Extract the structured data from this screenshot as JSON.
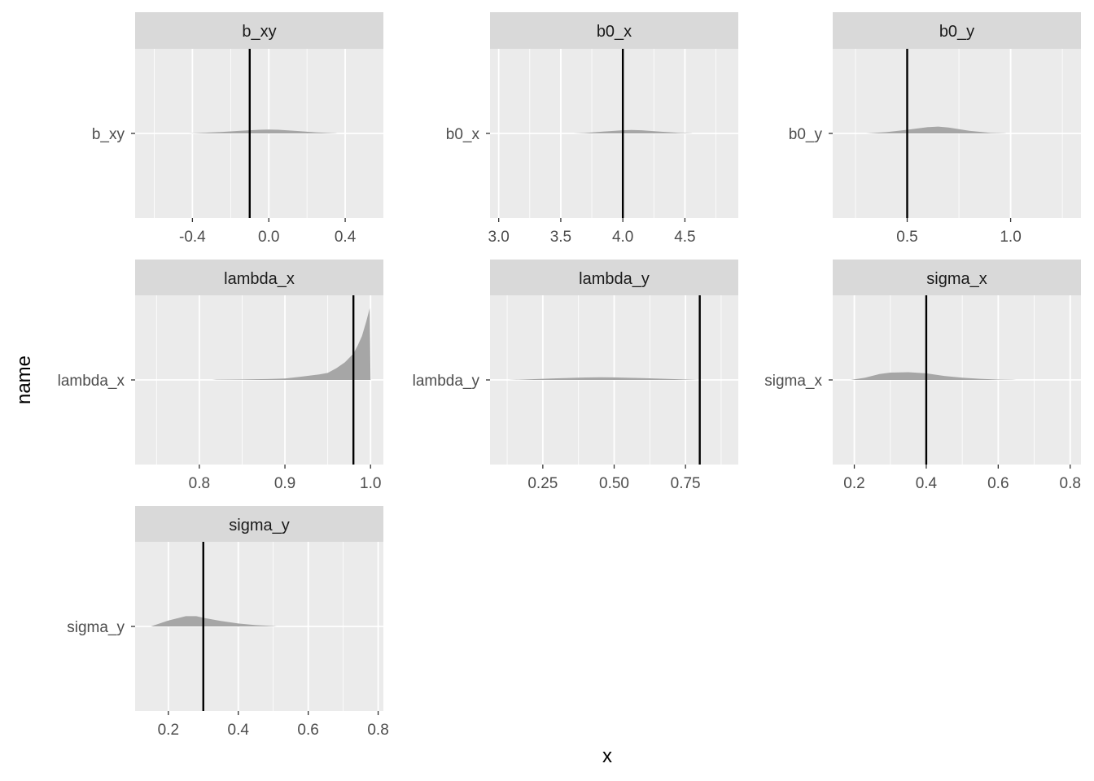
{
  "chart_data": {
    "type": "area",
    "xlabel": "x",
    "ylabel": "name",
    "panels": [
      {
        "name": "b_xy",
        "y_label": "b_xy",
        "xlim": [
          -0.7,
          0.6
        ],
        "ticks": [
          -0.4,
          0.0,
          0.4
        ],
        "tick_labels": [
          "-0.4",
          "0.0",
          "0.4"
        ],
        "ref_line": -0.1,
        "density": [
          [
            -0.42,
            0
          ],
          [
            -0.35,
            0.008
          ],
          [
            -0.25,
            0.02
          ],
          [
            -0.15,
            0.037
          ],
          [
            -0.05,
            0.05
          ],
          [
            0.0,
            0.053
          ],
          [
            0.05,
            0.05
          ],
          [
            0.15,
            0.033
          ],
          [
            0.25,
            0.015
          ],
          [
            0.35,
            0.003
          ],
          [
            0.36,
            0
          ]
        ]
      },
      {
        "name": "b0_x",
        "y_label": "b0_x",
        "xlim": [
          2.93,
          4.93
        ],
        "ticks": [
          3.0,
          3.5,
          4.0,
          4.5
        ],
        "tick_labels": [
          "3.0",
          "3.5",
          "4.0",
          "4.5"
        ],
        "ref_line": 4.0,
        "density": [
          [
            3.6,
            0
          ],
          [
            3.7,
            0.007
          ],
          [
            3.85,
            0.027
          ],
          [
            4.0,
            0.043
          ],
          [
            4.07,
            0.048
          ],
          [
            4.15,
            0.043
          ],
          [
            4.3,
            0.024
          ],
          [
            4.45,
            0.008
          ],
          [
            4.55,
            0.002
          ],
          [
            4.56,
            0
          ]
        ]
      },
      {
        "name": "b0_y",
        "y_label": "b0_y",
        "xlim": [
          0.14,
          1.34
        ],
        "ticks": [
          0.5,
          1.0
        ],
        "tick_labels": [
          "0.5",
          "1.0"
        ],
        "ref_line": 0.5,
        "density": [
          [
            0.3,
            0
          ],
          [
            0.4,
            0.018
          ],
          [
            0.5,
            0.05
          ],
          [
            0.6,
            0.085
          ],
          [
            0.65,
            0.093
          ],
          [
            0.7,
            0.08
          ],
          [
            0.8,
            0.035
          ],
          [
            0.9,
            0.008
          ],
          [
            0.97,
            0.002
          ],
          [
            0.98,
            0
          ]
        ]
      },
      {
        "name": "lambda_x",
        "y_label": "lambda_x",
        "xlim": [
          0.725,
          1.015
        ],
        "ticks": [
          0.8,
          0.9,
          1.0
        ],
        "tick_labels": [
          "0.8",
          "0.9",
          "1.0"
        ],
        "ref_line": 0.98,
        "density": [
          [
            0.815,
            0
          ],
          [
            0.82,
            0.004
          ],
          [
            0.85,
            0.007
          ],
          [
            0.88,
            0.012
          ],
          [
            0.9,
            0.02
          ],
          [
            0.92,
            0.045
          ],
          [
            0.94,
            0.075
          ],
          [
            0.95,
            0.095
          ],
          [
            0.96,
            0.16
          ],
          [
            0.97,
            0.24
          ],
          [
            0.98,
            0.36
          ],
          [
            0.985,
            0.47
          ],
          [
            0.99,
            0.6
          ],
          [
            0.995,
            0.8
          ],
          [
            0.999,
            0.98
          ],
          [
            1.0,
            0
          ]
        ]
      },
      {
        "name": "lambda_y",
        "y_label": "lambda_y",
        "xlim": [
          0.065,
          0.935
        ],
        "ticks": [
          0.25,
          0.5,
          0.75
        ],
        "tick_labels": [
          "0.25",
          "0.50",
          "0.75"
        ],
        "ref_line": 0.8,
        "density": [
          [
            0.13,
            0
          ],
          [
            0.2,
            0.008
          ],
          [
            0.3,
            0.022
          ],
          [
            0.4,
            0.033
          ],
          [
            0.45,
            0.036
          ],
          [
            0.5,
            0.034
          ],
          [
            0.6,
            0.025
          ],
          [
            0.7,
            0.012
          ],
          [
            0.78,
            0.003
          ],
          [
            0.8,
            0
          ]
        ]
      },
      {
        "name": "sigma_x",
        "y_label": "sigma_x",
        "xlim": [
          0.14,
          0.83
        ],
        "ticks": [
          0.2,
          0.4,
          0.6,
          0.8
        ],
        "tick_labels": [
          "0.2",
          "0.4",
          "0.6",
          "0.8"
        ],
        "ref_line": 0.4,
        "density": [
          [
            0.19,
            0
          ],
          [
            0.23,
            0.03
          ],
          [
            0.27,
            0.08
          ],
          [
            0.3,
            0.1
          ],
          [
            0.35,
            0.106
          ],
          [
            0.4,
            0.09
          ],
          [
            0.45,
            0.055
          ],
          [
            0.5,
            0.03
          ],
          [
            0.55,
            0.015
          ],
          [
            0.6,
            0.006
          ],
          [
            0.64,
            0.002
          ],
          [
            0.65,
            0
          ]
        ]
      },
      {
        "name": "sigma_y",
        "y_label": "sigma_y",
        "xlim": [
          0.105,
          0.815
        ],
        "ticks": [
          0.2,
          0.4,
          0.6,
          0.8
        ],
        "tick_labels": [
          "0.2",
          "0.4",
          "0.6",
          "0.8"
        ],
        "ref_line": 0.3,
        "density": [
          [
            0.15,
            0
          ],
          [
            0.2,
            0.08
          ],
          [
            0.25,
            0.14
          ],
          [
            0.28,
            0.14
          ],
          [
            0.3,
            0.118
          ],
          [
            0.35,
            0.075
          ],
          [
            0.4,
            0.04
          ],
          [
            0.45,
            0.018
          ],
          [
            0.5,
            0.005
          ],
          [
            0.51,
            0
          ]
        ]
      }
    ]
  }
}
